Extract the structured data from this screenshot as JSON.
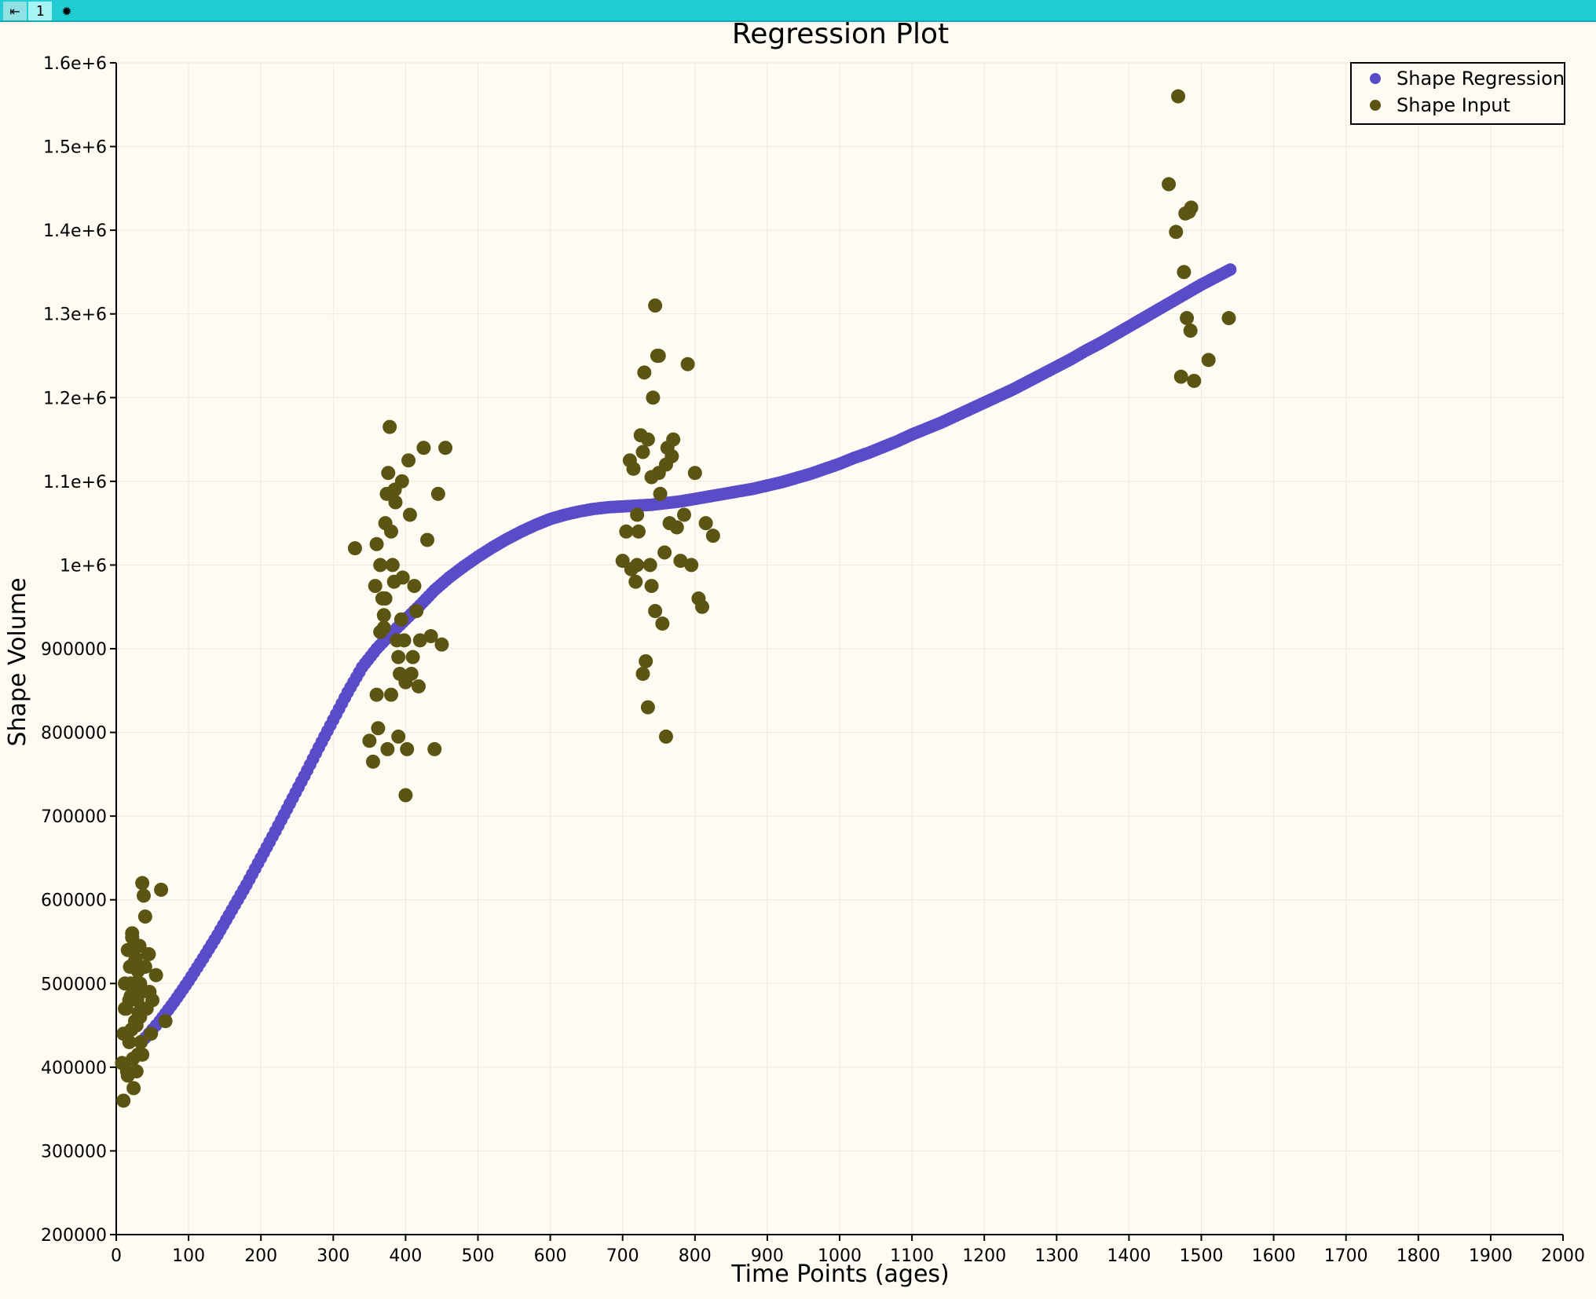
{
  "toolbar": {
    "restore_icon": "restore-arrow-icon",
    "view_number": "1",
    "settings_icon": "gear-icon"
  },
  "colors": {
    "toolbar_bg": "#21cdd3",
    "plot_bg": "#fefcf2",
    "grid": "#ece9df",
    "regression": "#5a4bc8",
    "input": "#5c5413"
  },
  "chart_data": {
    "type": "scatter",
    "title": "Regression Plot",
    "xlabel": "Time Points (ages)",
    "ylabel": "Shape Volume",
    "xlim": [
      0,
      2000
    ],
    "ylim": [
      200000,
      1600000
    ],
    "grid": true,
    "legend_position": "top-right",
    "x_ticks": [
      "0",
      "100",
      "200",
      "300",
      "400",
      "500",
      "600",
      "700",
      "800",
      "900",
      "1000",
      "1100",
      "1200",
      "1300",
      "1400",
      "1500",
      "1600",
      "1700",
      "1800",
      "1900",
      "2000"
    ],
    "y_ticks": [
      "200000",
      "300000",
      "400000",
      "500000",
      "600000",
      "700000",
      "800000",
      "900000",
      "1e+6",
      "1.1e+6",
      "1.2e+6",
      "1.3e+6",
      "1.4e+6",
      "1.5e+6",
      "1.6e+6"
    ],
    "series": [
      {
        "name": "Shape Regression",
        "color": "#5a4bc8",
        "x": [
          35,
          60,
          80,
          100,
          120,
          140,
          160,
          180,
          200,
          220,
          240,
          260,
          280,
          300,
          320,
          340,
          360,
          380,
          400,
          420,
          440,
          460,
          480,
          500,
          520,
          540,
          560,
          580,
          600,
          620,
          640,
          660,
          680,
          700,
          720,
          740,
          760,
          780,
          800,
          820,
          840,
          860,
          880,
          900,
          920,
          940,
          960,
          980,
          1000,
          1020,
          1040,
          1060,
          1080,
          1100,
          1120,
          1140,
          1160,
          1180,
          1200,
          1220,
          1240,
          1260,
          1280,
          1300,
          1320,
          1340,
          1360,
          1380,
          1400,
          1420,
          1440,
          1460,
          1480,
          1500,
          1520,
          1540
        ],
        "y": [
          430000,
          455000,
          478000,
          503000,
          530000,
          558000,
          588000,
          618000,
          650000,
          682000,
          715000,
          748000,
          782000,
          815000,
          848000,
          878000,
          900000,
          918000,
          935000,
          952000,
          970000,
          985000,
          998000,
          1010000,
          1021000,
          1031000,
          1040000,
          1048000,
          1055000,
          1060000,
          1064000,
          1067000,
          1069000,
          1070000,
          1071000,
          1072000,
          1074000,
          1076000,
          1079000,
          1082000,
          1085000,
          1088000,
          1091000,
          1095000,
          1099000,
          1104000,
          1109000,
          1115000,
          1121000,
          1128000,
          1134000,
          1141000,
          1148000,
          1156000,
          1163000,
          1170000,
          1178000,
          1186000,
          1194000,
          1202000,
          1210000,
          1219000,
          1228000,
          1237000,
          1246000,
          1256000,
          1265000,
          1275000,
          1285000,
          1295000,
          1305000,
          1315000,
          1325000,
          1335000,
          1344000,
          1353000
        ]
      },
      {
        "name": "Shape Input",
        "color": "#5c5413",
        "x": [
          8,
          10,
          12,
          14,
          15,
          16,
          18,
          19,
          20,
          21,
          22,
          23,
          24,
          25,
          26,
          27,
          28,
          29,
          30,
          31,
          32,
          33,
          34,
          35,
          36,
          38,
          40,
          42,
          44,
          46,
          48,
          50,
          55,
          62,
          68,
          15,
          22,
          30,
          25,
          12,
          40,
          45,
          18,
          28,
          36,
          20,
          10,
          33,
          24,
          16,
          330,
          350,
          355,
          358,
          360,
          362,
          365,
          368,
          370,
          372,
          374,
          376,
          378,
          380,
          382,
          384,
          386,
          388,
          390,
          392,
          394,
          396,
          398,
          400,
          402,
          404,
          406,
          408,
          410,
          412,
          415,
          418,
          420,
          425,
          430,
          435,
          440,
          445,
          450,
          455,
          360,
          370,
          380,
          390,
          400,
          375,
          385,
          395,
          365,
          372,
          700,
          705,
          710,
          712,
          715,
          718,
          720,
          722,
          725,
          728,
          730,
          732,
          735,
          738,
          740,
          742,
          745,
          748,
          750,
          752,
          755,
          758,
          760,
          762,
          765,
          768,
          770,
          775,
          780,
          785,
          790,
          795,
          800,
          805,
          810,
          815,
          825,
          735,
          745,
          728,
          740,
          750,
          720,
          760,
          1455,
          1465,
          1468,
          1472,
          1476,
          1480,
          1483,
          1486,
          1490,
          1510,
          1538,
          1478,
          1485
        ],
        "y": [
          405000,
          360000,
          500000,
          470000,
          395000,
          540000,
          430000,
          520000,
          485000,
          445000,
          560000,
          410000,
          375000,
          500000,
          455000,
          530000,
          395000,
          480000,
          515000,
          465000,
          545000,
          500000,
          430000,
          490000,
          620000,
          605000,
          520000,
          470000,
          535000,
          490000,
          440000,
          480000,
          510000,
          612000,
          455000,
          440000,
          555000,
          415000,
          525000,
          470000,
          580000,
          535000,
          480000,
          450000,
          415000,
          500000,
          440000,
          460000,
          495000,
          390000,
          1020000,
          790000,
          765000,
          975000,
          1025000,
          805000,
          1000000,
          960000,
          940000,
          1050000,
          1085000,
          1110000,
          1165000,
          1040000,
          1000000,
          980000,
          1075000,
          910000,
          890000,
          870000,
          935000,
          985000,
          910000,
          860000,
          780000,
          1125000,
          1060000,
          870000,
          890000,
          975000,
          945000,
          855000,
          910000,
          1140000,
          1030000,
          915000,
          780000,
          1085000,
          905000,
          1140000,
          845000,
          925000,
          845000,
          795000,
          725000,
          780000,
          1090000,
          1100000,
          920000,
          960000,
          1005000,
          1040000,
          1125000,
          995000,
          1115000,
          980000,
          1060000,
          1040000,
          1155000,
          1135000,
          1230000,
          885000,
          1150000,
          1000000,
          1105000,
          1200000,
          1310000,
          1250000,
          1110000,
          1085000,
          930000,
          1015000,
          1120000,
          1140000,
          1050000,
          1130000,
          1150000,
          1045000,
          1005000,
          1060000,
          1240000,
          1000000,
          1110000,
          960000,
          950000,
          1050000,
          1035000,
          830000,
          945000,
          870000,
          975000,
          1250000,
          1000000,
          795000,
          1455000,
          1398000,
          1560000,
          1225000,
          1350000,
          1295000,
          1422000,
          1427000,
          1220000,
          1245000,
          1295000,
          1420000,
          1280000
        ]
      }
    ]
  }
}
